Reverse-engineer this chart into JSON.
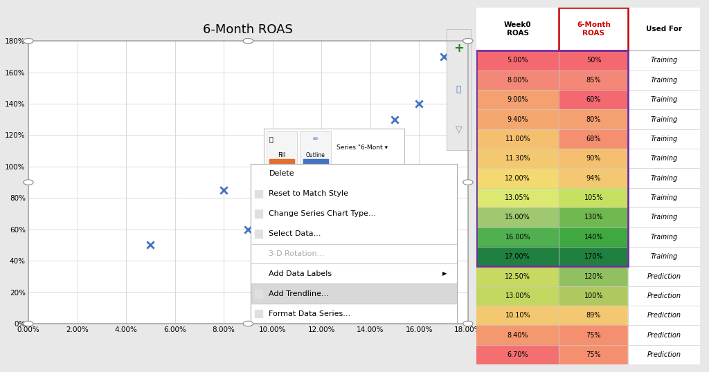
{
  "title": "6-Month ROAS",
  "scatter_x": [
    5.0,
    8.0,
    9.0,
    9.4,
    11.0,
    11.3,
    12.0,
    13.05,
    15.0,
    16.0,
    17.0
  ],
  "scatter_y": [
    50,
    85,
    60,
    80,
    68,
    90,
    94,
    105,
    130,
    140,
    170
  ],
  "xlim": [
    0.0,
    0.18
  ],
  "ylim": [
    0,
    180
  ],
  "xtick_vals": [
    0.0,
    0.02,
    0.04,
    0.06,
    0.08,
    0.1,
    0.12,
    0.14,
    0.16,
    0.18
  ],
  "xtick_labels": [
    "0.00%",
    "2.00%",
    "4.00%",
    "6.00%",
    "8.00%",
    "10.00%",
    "12.00%",
    "14.00%",
    "16.00%",
    "18.00%"
  ],
  "ytick_vals": [
    0,
    20,
    40,
    60,
    80,
    100,
    120,
    140,
    160,
    180
  ],
  "ytick_labels": [
    "0%",
    "20%",
    "40%",
    "60%",
    "80%",
    "100%",
    "120%",
    "140%",
    "160%",
    "180%"
  ],
  "table_week0": [
    5.0,
    8.0,
    9.0,
    9.4,
    11.0,
    11.3,
    12.0,
    13.05,
    15.0,
    16.0,
    17.0,
    12.5,
    13.0,
    10.1,
    8.4,
    6.7
  ],
  "table_6month": [
    50,
    85,
    60,
    80,
    68,
    90,
    94,
    105,
    130,
    140,
    170,
    120,
    100,
    89,
    75,
    75
  ],
  "table_used_for": [
    "Training",
    "Training",
    "Training",
    "Training",
    "Training",
    "Training",
    "Training",
    "Training",
    "Training",
    "Training",
    "Training",
    "Prediction",
    "Prediction",
    "Prediction",
    "Prediction",
    "Prediction"
  ],
  "week0_training_colors": [
    "#f46870",
    "#f48878",
    "#f4a070",
    "#f4a870",
    "#f4c070",
    "#f4c870",
    "#f4d870",
    "#dce870",
    "#a0c870",
    "#50b050",
    "#208040"
  ],
  "week0_prediction_colors": [
    "#c8d860",
    "#c0d860",
    "#f4c870",
    "#f49870",
    "#f47070"
  ],
  "sixmonth_training_colors": [
    "#f46870",
    "#f48878",
    "#f46870",
    "#f4a070",
    "#f49070",
    "#f4c070",
    "#f4c870",
    "#c8e060",
    "#70b850",
    "#40a840",
    "#208040"
  ],
  "sixmonth_prediction_colors": [
    "#90c060",
    "#b0c860",
    "#f4c870",
    "#f49070",
    "#f49070"
  ],
  "bg_color": "#e8e8e8",
  "chart_bg": "#ffffff",
  "marker_color": "#4472c4",
  "context_menu_items": [
    "Delete",
    "Reset to Match Style",
    "Change Series Chart Type...",
    "Select Data...",
    "3-D Rotation...",
    "Add Data Labels",
    "Add Trendline...",
    "Format Data Series..."
  ],
  "highlighted_menu_item": "Add Trendline...",
  "grayed_menu_item": "3-D Rotation...",
  "series_label": "Series \"6-Mont ▾"
}
